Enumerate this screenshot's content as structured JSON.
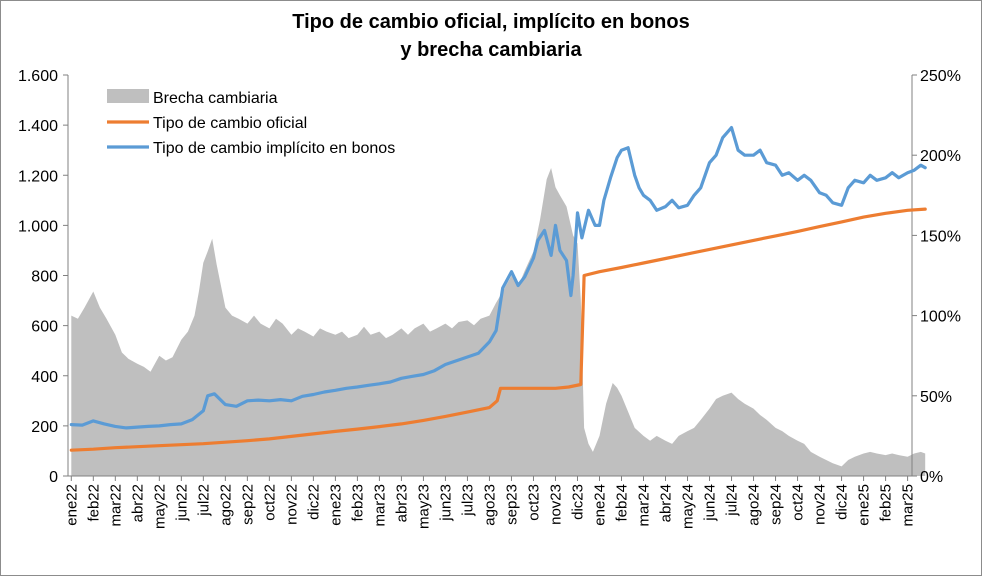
{
  "chart_data": {
    "type": "line",
    "title_line1": "Tipo de cambio oficial, implícito en bonos",
    "title_line2": "y brecha cambiaria",
    "categories": [
      "ene22",
      "feb22",
      "mar22",
      "abr22",
      "may22",
      "jun22",
      "jul22",
      "ago22",
      "sep22",
      "oct22",
      "nov22",
      "dic22",
      "ene23",
      "feb23",
      "mar23",
      "abr23",
      "may23",
      "jun23",
      "jul23",
      "ago23",
      "sep23",
      "oct23",
      "nov23",
      "dic23",
      "ene24",
      "feb24",
      "mar24",
      "abr24",
      "may24",
      "jun24",
      "jul24",
      "ago24",
      "sep24",
      "oct24",
      "nov24",
      "dic24",
      "ene25",
      "feb25",
      "mar25"
    ],
    "y_left": {
      "min": 0,
      "max": 1600,
      "ticks": [
        0,
        200,
        400,
        600,
        800,
        1000,
        1200,
        1400,
        1600
      ],
      "tick_labels": [
        "0",
        "200",
        "400",
        "600",
        "800",
        "1.000",
        "1.200",
        "1.400",
        "1.600"
      ]
    },
    "y_right": {
      "min": 0,
      "max": 250,
      "ticks": [
        0,
        50,
        100,
        150,
        200,
        250
      ],
      "tick_labels": [
        "0%",
        "50%",
        "100%",
        "150%",
        "200%",
        "250%"
      ]
    },
    "legend_position": "top-left",
    "series": [
      {
        "name": "Brecha cambiaria",
        "type": "area",
        "axis": "right",
        "color": "#bfbfbf",
        "points": [
          [
            0,
            100
          ],
          [
            0.3,
            98
          ],
          [
            0.6,
            105
          ],
          [
            1,
            115
          ],
          [
            1.3,
            105
          ],
          [
            1.6,
            98
          ],
          [
            2,
            88
          ],
          [
            2.3,
            77
          ],
          [
            2.6,
            73
          ],
          [
            3,
            70
          ],
          [
            3.3,
            68
          ],
          [
            3.6,
            65
          ],
          [
            4,
            75
          ],
          [
            4.3,
            72
          ],
          [
            4.6,
            74
          ],
          [
            5,
            85
          ],
          [
            5.3,
            90
          ],
          [
            5.6,
            100
          ],
          [
            5.8,
            115
          ],
          [
            6,
            133
          ],
          [
            6.2,
            140
          ],
          [
            6.4,
            148
          ],
          [
            6.6,
            132
          ],
          [
            7,
            105
          ],
          [
            7.3,
            100
          ],
          [
            7.6,
            98
          ],
          [
            8,
            95
          ],
          [
            8.3,
            100
          ],
          [
            8.6,
            95
          ],
          [
            9,
            92
          ],
          [
            9.3,
            98
          ],
          [
            9.6,
            95
          ],
          [
            10,
            88
          ],
          [
            10.3,
            92
          ],
          [
            10.6,
            90
          ],
          [
            11,
            87
          ],
          [
            11.3,
            92
          ],
          [
            11.6,
            90
          ],
          [
            12,
            88
          ],
          [
            12.3,
            90
          ],
          [
            12.6,
            86
          ],
          [
            13,
            88
          ],
          [
            13.3,
            93
          ],
          [
            13.6,
            88
          ],
          [
            14,
            90
          ],
          [
            14.3,
            86
          ],
          [
            14.6,
            88
          ],
          [
            15,
            92
          ],
          [
            15.3,
            88
          ],
          [
            15.6,
            92
          ],
          [
            16,
            95
          ],
          [
            16.3,
            90
          ],
          [
            16.6,
            92
          ],
          [
            17,
            95
          ],
          [
            17.3,
            92
          ],
          [
            17.6,
            96
          ],
          [
            18,
            97
          ],
          [
            18.3,
            94
          ],
          [
            18.6,
            98
          ],
          [
            19,
            100
          ],
          [
            19.3,
            108
          ],
          [
            19.6,
            115
          ],
          [
            20,
            125
          ],
          [
            20.3,
            118
          ],
          [
            20.6,
            128
          ],
          [
            21,
            140
          ],
          [
            21.3,
            160
          ],
          [
            21.6,
            185
          ],
          [
            21.8,
            192
          ],
          [
            22,
            180
          ],
          [
            22.2,
            175
          ],
          [
            22.5,
            168
          ],
          [
            22.8,
            150
          ],
          [
            23,
            145
          ],
          [
            23.15,
            110
          ],
          [
            23.3,
            30
          ],
          [
            23.5,
            20
          ],
          [
            23.7,
            15
          ],
          [
            24,
            25
          ],
          [
            24.3,
            45
          ],
          [
            24.6,
            58
          ],
          [
            24.8,
            55
          ],
          [
            25,
            50
          ],
          [
            25.3,
            40
          ],
          [
            25.6,
            30
          ],
          [
            26,
            25
          ],
          [
            26.3,
            22
          ],
          [
            26.6,
            25
          ],
          [
            27,
            22
          ],
          [
            27.3,
            20
          ],
          [
            27.6,
            25
          ],
          [
            28,
            28
          ],
          [
            28.3,
            30
          ],
          [
            28.6,
            35
          ],
          [
            29,
            42
          ],
          [
            29.3,
            48
          ],
          [
            29.6,
            50
          ],
          [
            30,
            52
          ],
          [
            30.3,
            48
          ],
          [
            30.6,
            45
          ],
          [
            31,
            42
          ],
          [
            31.3,
            38
          ],
          [
            31.6,
            35
          ],
          [
            32,
            30
          ],
          [
            32.3,
            28
          ],
          [
            32.6,
            25
          ],
          [
            33,
            22
          ],
          [
            33.3,
            20
          ],
          [
            33.6,
            15
          ],
          [
            34,
            12
          ],
          [
            34.3,
            10
          ],
          [
            34.6,
            8
          ],
          [
            35,
            6
          ],
          [
            35.3,
            10
          ],
          [
            35.6,
            12
          ],
          [
            36,
            14
          ],
          [
            36.3,
            15
          ],
          [
            36.6,
            14
          ],
          [
            37,
            13
          ],
          [
            37.3,
            14
          ],
          [
            37.6,
            13
          ],
          [
            38,
            12
          ],
          [
            38.3,
            14
          ],
          [
            38.6,
            15
          ],
          [
            38.8,
            14
          ]
        ]
      },
      {
        "name": "Tipo de cambio oficial",
        "type": "line",
        "axis": "left",
        "color": "#ed7d31",
        "points": [
          [
            0,
            103
          ],
          [
            1,
            107
          ],
          [
            2,
            113
          ],
          [
            3,
            117
          ],
          [
            4,
            121
          ],
          [
            5,
            125
          ],
          [
            6,
            129
          ],
          [
            7,
            135
          ],
          [
            8,
            141
          ],
          [
            9,
            148
          ],
          [
            10,
            158
          ],
          [
            11,
            168
          ],
          [
            12,
            178
          ],
          [
            13,
            187
          ],
          [
            14,
            197
          ],
          [
            15,
            208
          ],
          [
            16,
            222
          ],
          [
            17,
            238
          ],
          [
            18,
            255
          ],
          [
            19,
            273
          ],
          [
            19.35,
            300
          ],
          [
            19.5,
            350
          ],
          [
            20,
            350
          ],
          [
            21,
            350
          ],
          [
            22,
            350
          ],
          [
            22.6,
            355
          ],
          [
            23.15,
            365
          ],
          [
            23.3,
            800
          ],
          [
            24,
            815
          ],
          [
            25,
            832
          ],
          [
            26,
            850
          ],
          [
            27,
            868
          ],
          [
            28,
            886
          ],
          [
            29,
            904
          ],
          [
            30,
            922
          ],
          [
            31,
            940
          ],
          [
            32,
            958
          ],
          [
            33,
            976
          ],
          [
            34,
            995
          ],
          [
            35,
            1014
          ],
          [
            36,
            1033
          ],
          [
            37,
            1048
          ],
          [
            38,
            1060
          ],
          [
            38.8,
            1065
          ]
        ]
      },
      {
        "name": "Tipo de cambio implícito en bonos",
        "type": "line",
        "axis": "left",
        "color": "#5b9bd5",
        "points": [
          [
            0,
            205
          ],
          [
            0.5,
            203
          ],
          [
            1,
            220
          ],
          [
            1.5,
            208
          ],
          [
            2,
            198
          ],
          [
            2.5,
            192
          ],
          [
            3,
            195
          ],
          [
            3.5,
            198
          ],
          [
            4,
            200
          ],
          [
            4.5,
            205
          ],
          [
            5,
            208
          ],
          [
            5.5,
            225
          ],
          [
            6,
            260
          ],
          [
            6.2,
            320
          ],
          [
            6.5,
            328
          ],
          [
            7,
            285
          ],
          [
            7.5,
            278
          ],
          [
            8,
            300
          ],
          [
            8.5,
            303
          ],
          [
            9,
            300
          ],
          [
            9.5,
            305
          ],
          [
            10,
            300
          ],
          [
            10.5,
            318
          ],
          [
            11,
            325
          ],
          [
            11.5,
            335
          ],
          [
            12,
            342
          ],
          [
            12.5,
            350
          ],
          [
            13,
            355
          ],
          [
            13.5,
            362
          ],
          [
            14,
            368
          ],
          [
            14.5,
            375
          ],
          [
            15,
            390
          ],
          [
            15.5,
            398
          ],
          [
            16,
            405
          ],
          [
            16.5,
            420
          ],
          [
            17,
            445
          ],
          [
            17.5,
            460
          ],
          [
            18,
            475
          ],
          [
            18.5,
            490
          ],
          [
            19,
            535
          ],
          [
            19.3,
            580
          ],
          [
            19.6,
            750
          ],
          [
            20,
            815
          ],
          [
            20.3,
            760
          ],
          [
            20.6,
            795
          ],
          [
            21,
            870
          ],
          [
            21.2,
            940
          ],
          [
            21.5,
            980
          ],
          [
            21.8,
            880
          ],
          [
            22,
            1000
          ],
          [
            22.2,
            900
          ],
          [
            22.5,
            860
          ],
          [
            22.7,
            720
          ],
          [
            22.8,
            800
          ],
          [
            23,
            1050
          ],
          [
            23.2,
            950
          ],
          [
            23.5,
            1060
          ],
          [
            23.8,
            1000
          ],
          [
            24,
            1000
          ],
          [
            24.2,
            1100
          ],
          [
            24.5,
            1190
          ],
          [
            24.8,
            1270
          ],
          [
            25,
            1300
          ],
          [
            25.3,
            1310
          ],
          [
            25.6,
            1200
          ],
          [
            25.8,
            1150
          ],
          [
            26,
            1120
          ],
          [
            26.3,
            1100
          ],
          [
            26.6,
            1060
          ],
          [
            27,
            1075
          ],
          [
            27.3,
            1100
          ],
          [
            27.6,
            1070
          ],
          [
            28,
            1080
          ],
          [
            28.3,
            1120
          ],
          [
            28.6,
            1150
          ],
          [
            29,
            1250
          ],
          [
            29.3,
            1280
          ],
          [
            29.6,
            1350
          ],
          [
            30,
            1390
          ],
          [
            30.3,
            1300
          ],
          [
            30.6,
            1280
          ],
          [
            31,
            1280
          ],
          [
            31.3,
            1300
          ],
          [
            31.6,
            1250
          ],
          [
            32,
            1240
          ],
          [
            32.3,
            1200
          ],
          [
            32.6,
            1210
          ],
          [
            33,
            1180
          ],
          [
            33.3,
            1200
          ],
          [
            33.6,
            1180
          ],
          [
            34,
            1130
          ],
          [
            34.3,
            1120
          ],
          [
            34.6,
            1090
          ],
          [
            35,
            1080
          ],
          [
            35.3,
            1150
          ],
          [
            35.6,
            1180
          ],
          [
            36,
            1170
          ],
          [
            36.3,
            1200
          ],
          [
            36.6,
            1180
          ],
          [
            37,
            1190
          ],
          [
            37.3,
            1210
          ],
          [
            37.6,
            1190
          ],
          [
            38,
            1210
          ],
          [
            38.3,
            1220
          ],
          [
            38.6,
            1240
          ],
          [
            38.8,
            1230
          ]
        ]
      }
    ]
  }
}
